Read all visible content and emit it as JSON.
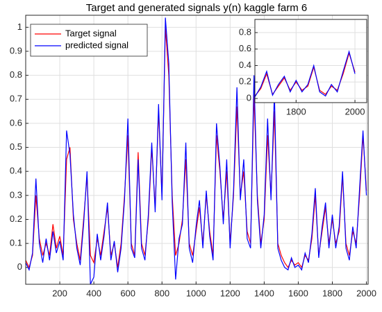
{
  "chart_data": [
    {
      "type": "line",
      "title": "Target and generated signals y(n) kaggle farm 6",
      "x": [
        0,
        20,
        40,
        60,
        80,
        100,
        120,
        140,
        160,
        180,
        200,
        220,
        240,
        260,
        280,
        300,
        320,
        340,
        360,
        380,
        400,
        420,
        440,
        460,
        480,
        500,
        520,
        540,
        560,
        580,
        600,
        620,
        640,
        660,
        680,
        700,
        720,
        740,
        760,
        780,
        800,
        820,
        840,
        860,
        880,
        900,
        920,
        940,
        960,
        980,
        1000,
        1020,
        1040,
        1060,
        1080,
        1100,
        1120,
        1140,
        1160,
        1180,
        1200,
        1220,
        1240,
        1260,
        1280,
        1300,
        1320,
        1340,
        1360,
        1380,
        1400,
        1420,
        1440,
        1460,
        1480,
        1500,
        1520,
        1540,
        1560,
        1580,
        1600,
        1620,
        1640,
        1660,
        1680,
        1700,
        1720,
        1740,
        1760,
        1780,
        1800,
        1820,
        1840,
        1860,
        1880,
        1900,
        1920,
        1940,
        1960,
        1980,
        2000
      ],
      "series": [
        {
          "name": "Target signal",
          "color": "#ff0000",
          "values": [
            0.03,
            0.0,
            0.05,
            0.3,
            0.12,
            0.05,
            0.1,
            0.05,
            0.18,
            0.08,
            0.13,
            0.05,
            0.45,
            0.5,
            0.2,
            0.1,
            0.03,
            0.2,
            0.38,
            0.05,
            0.02,
            0.12,
            0.05,
            0.15,
            0.25,
            0.05,
            0.1,
            0.0,
            0.1,
            0.3,
            0.55,
            0.1,
            0.05,
            0.48,
            0.1,
            0.05,
            0.2,
            0.5,
            0.25,
            0.65,
            0.3,
            1.0,
            0.8,
            0.3,
            0.05,
            0.1,
            0.2,
            0.45,
            0.1,
            0.05,
            0.15,
            0.25,
            0.1,
            0.3,
            0.15,
            0.05,
            0.55,
            0.4,
            0.2,
            0.4,
            0.1,
            0.3,
            0.67,
            0.3,
            0.4,
            0.15,
            0.1,
            0.72,
            0.3,
            0.1,
            0.2,
            0.55,
            0.3,
            0.65,
            0.1,
            0.05,
            0.02,
            0.0,
            0.03,
            0.01,
            0.02,
            0.0,
            0.05,
            0.03,
            0.12,
            0.3,
            0.05,
            0.15,
            0.25,
            0.1,
            0.2,
            0.1,
            0.15,
            0.38,
            0.1,
            0.05,
            0.15,
            0.1,
            0.3,
            0.55,
            0.32
          ]
        },
        {
          "name": "predicted signal",
          "color": "#0000ff",
          "values": [
            0.02,
            -0.01,
            0.06,
            0.37,
            0.1,
            0.02,
            0.12,
            0.03,
            0.15,
            0.06,
            0.11,
            0.03,
            0.57,
            0.47,
            0.22,
            0.08,
            0.01,
            0.18,
            0.4,
            -0.07,
            -0.04,
            0.14,
            0.03,
            0.13,
            0.27,
            0.03,
            0.11,
            -0.02,
            0.08,
            0.28,
            0.62,
            0.08,
            0.04,
            0.45,
            0.08,
            0.03,
            0.22,
            0.52,
            0.23,
            0.68,
            0.28,
            1.04,
            0.85,
            0.27,
            -0.05,
            0.12,
            0.18,
            0.52,
            0.08,
            0.02,
            0.17,
            0.28,
            0.08,
            0.32,
            0.13,
            0.03,
            0.6,
            0.42,
            0.18,
            0.45,
            0.08,
            0.32,
            0.75,
            0.28,
            0.45,
            0.12,
            0.08,
            0.8,
            0.28,
            0.08,
            0.22,
            0.62,
            0.28,
            0.73,
            0.08,
            0.03,
            0.0,
            -0.01,
            0.04,
            0.0,
            0.01,
            -0.01,
            0.06,
            0.02,
            0.14,
            0.33,
            0.04,
            0.17,
            0.27,
            0.08,
            0.22,
            0.08,
            0.17,
            0.4,
            0.08,
            0.03,
            0.17,
            0.08,
            0.33,
            0.57,
            0.3
          ]
        }
      ],
      "xlim": [
        0,
        2010
      ],
      "ylim": [
        -0.07,
        1.05
      ],
      "xticks": [
        200,
        400,
        600,
        800,
        1000,
        1200,
        1400,
        1600,
        1800,
        2000
      ],
      "yticks": [
        0,
        0.1,
        0.2,
        0.3,
        0.4,
        0.5,
        0.6,
        0.7,
        0.8,
        0.9,
        1
      ],
      "grid": true,
      "legend": "upper left"
    },
    {
      "type": "line",
      "x": [
        1660,
        1680,
        1700,
        1720,
        1740,
        1760,
        1780,
        1800,
        1820,
        1840,
        1860,
        1880,
        1900,
        1920,
        1940,
        1960,
        1980,
        2000
      ],
      "series": [
        {
          "color": "#ff0000",
          "values": [
            0.03,
            0.12,
            0.3,
            0.05,
            0.15,
            0.25,
            0.1,
            0.2,
            0.1,
            0.15,
            0.38,
            0.1,
            0.05,
            0.15,
            0.1,
            0.3,
            0.55,
            0.32
          ]
        },
        {
          "color": "#0000ff",
          "values": [
            0.02,
            0.14,
            0.33,
            0.04,
            0.17,
            0.27,
            0.08,
            0.22,
            0.08,
            0.17,
            0.4,
            0.08,
            0.03,
            0.17,
            0.08,
            0.33,
            0.57,
            0.3
          ]
        }
      ],
      "xlim": [
        1660,
        2040
      ],
      "ylim": [
        -0.05,
        0.96
      ],
      "xticks": [
        1800,
        2000
      ],
      "yticks": [
        0,
        0.2,
        0.4,
        0.6,
        0.8
      ],
      "grid": true
    }
  ]
}
